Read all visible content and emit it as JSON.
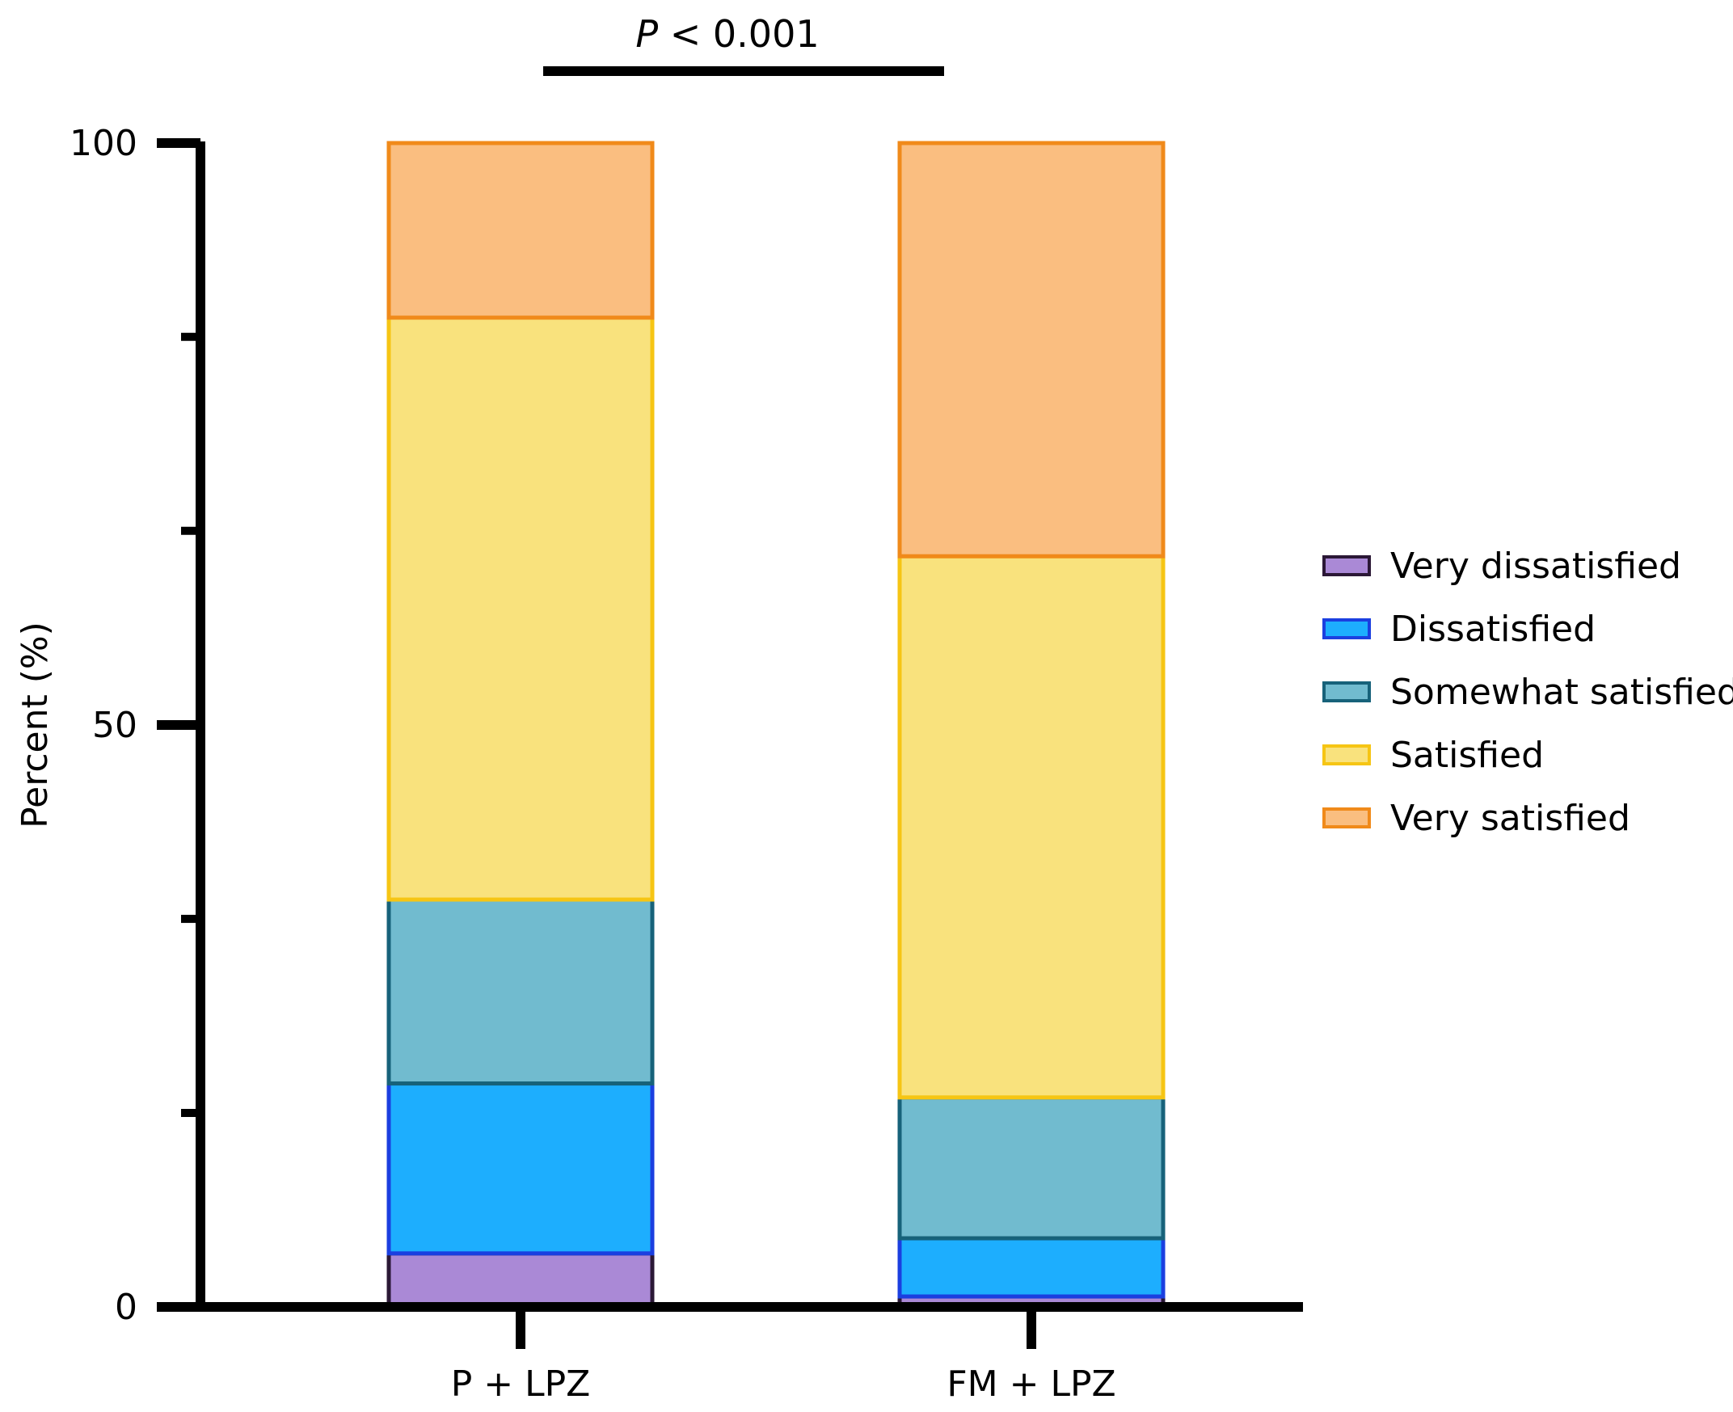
{
  "chart_data": {
    "type": "bar",
    "stacked": true,
    "categories": [
      "P + LPZ",
      "FM + LPZ"
    ],
    "series": [
      {
        "name": "Very dissatisfied",
        "values": [
          4.6,
          0.9
        ],
        "fill": "#AA89D6",
        "stroke": "#2B1836"
      },
      {
        "name": "Dissatisfied",
        "values": [
          14.6,
          5.0
        ],
        "fill": "#1DAEFE",
        "stroke": "#1B3FE0"
      },
      {
        "name": "Somewhat satisfied",
        "values": [
          15.8,
          12.1
        ],
        "fill": "#71BBCF",
        "stroke": "#17627A"
      },
      {
        "name": "Satisfied",
        "values": [
          50.0,
          46.5
        ],
        "fill": "#F9E27D",
        "stroke": "#F6C514"
      },
      {
        "name": "Very satisfied",
        "values": [
          15.0,
          35.5
        ],
        "fill": "#FABE80",
        "stroke": "#F08A1A"
      }
    ],
    "ylabel": "Percent (%)",
    "xlabel": "",
    "ylim": [
      0,
      100
    ],
    "yticks": [
      "0",
      "50",
      "100"
    ],
    "minor_tick_step": 16.67,
    "legend_position": "right",
    "annotation": {
      "italic": "P",
      "rest": " < 0.001"
    }
  }
}
